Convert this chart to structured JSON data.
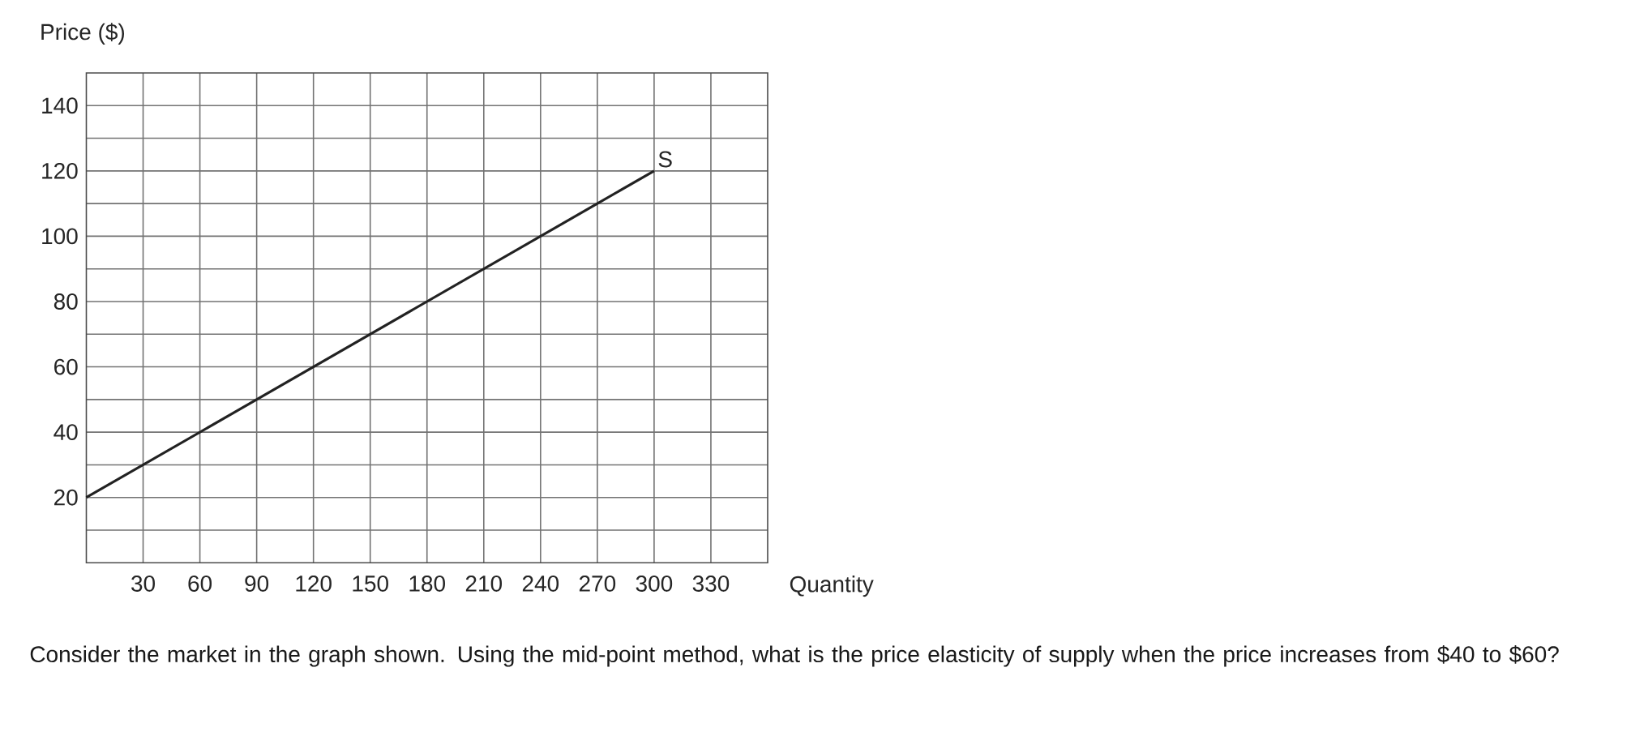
{
  "chart_data": {
    "type": "line",
    "ylabel": "Price ($)",
    "xlabel": "Quantity",
    "x": [
      0,
      300
    ],
    "values": [
      20,
      120
    ],
    "color": "#222222",
    "xlim": [
      0,
      360
    ],
    "ylim": [
      0,
      150
    ],
    "xticks": [
      30,
      60,
      90,
      120,
      150,
      180,
      210,
      240,
      270,
      300,
      330
    ],
    "yticks": [
      {
        "value": 10,
        "label": null
      },
      20,
      {
        "value": 30,
        "label": null
      },
      40,
      {
        "value": 50,
        "label": null
      },
      60,
      {
        "value": 70,
        "label": null
      },
      80,
      {
        "value": 90,
        "label": null
      },
      100,
      {
        "value": 110,
        "label": null
      },
      120,
      {
        "value": 130,
        "label": null
      },
      140
    ],
    "grid": true,
    "marker": "none",
    "line_style": "solid",
    "annotations": [
      {
        "text": "S",
        "x": 300,
        "y": 120
      },
      "Consider the market in the graph shown. Using the mid-point method, what is the price elasticity of supply when the price increases from $40 to $60?"
    ]
  }
}
